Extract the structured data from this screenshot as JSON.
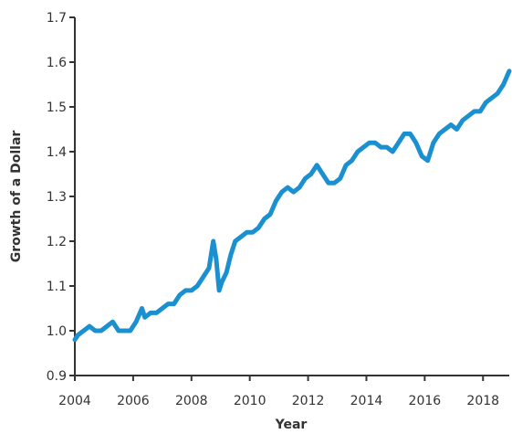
{
  "chart_data": {
    "type": "line",
    "title": "",
    "xlabel": "Year",
    "ylabel": "Growth of a Dollar",
    "xlim": [
      2004,
      2018.9
    ],
    "ylim": [
      0.9,
      1.7
    ],
    "xticks": [
      "2004",
      "2006",
      "2008",
      "2010",
      "2012",
      "2014",
      "2016",
      "2018"
    ],
    "yticks": [
      "0.9",
      "1.0",
      "1.1",
      "1.2",
      "1.3",
      "1.4",
      "1.5",
      "1.6",
      "1.7"
    ],
    "grid": false,
    "legend": "none",
    "line_color": "#1a90d0",
    "series": [
      {
        "x": [
          2004.0,
          2004.1,
          2004.3,
          2004.5,
          2004.7,
          2004.9,
          2005.1,
          2005.3,
          2005.5,
          2005.7,
          2005.9,
          2006.1,
          2006.3,
          2006.4,
          2006.6,
          2006.8,
          2007.0,
          2007.2,
          2007.4,
          2007.6,
          2007.8,
          2008.0,
          2008.2,
          2008.4,
          2008.6,
          2008.75,
          2008.85,
          2008.95,
          2009.05,
          2009.2,
          2009.35,
          2009.5,
          2009.7,
          2009.9,
          2010.1,
          2010.3,
          2010.5,
          2010.7,
          2010.9,
          2011.1,
          2011.3,
          2011.5,
          2011.7,
          2011.9,
          2012.1,
          2012.3,
          2012.5,
          2012.7,
          2012.9,
          2013.1,
          2013.3,
          2013.5,
          2013.7,
          2013.9,
          2014.1,
          2014.3,
          2014.5,
          2014.7,
          2014.9,
          2015.1,
          2015.3,
          2015.5,
          2015.7,
          2015.9,
          2016.1,
          2016.3,
          2016.5,
          2016.7,
          2016.9,
          2017.1,
          2017.3,
          2017.5,
          2017.7,
          2017.9,
          2018.1,
          2018.3,
          2018.5,
          2018.7,
          2018.9
        ],
        "y": [
          0.98,
          0.99,
          1.0,
          1.01,
          1.0,
          1.0,
          1.01,
          1.02,
          1.0,
          1.0,
          1.0,
          1.02,
          1.05,
          1.03,
          1.04,
          1.04,
          1.05,
          1.06,
          1.06,
          1.08,
          1.09,
          1.09,
          1.1,
          1.12,
          1.14,
          1.2,
          1.16,
          1.09,
          1.11,
          1.13,
          1.17,
          1.2,
          1.21,
          1.22,
          1.22,
          1.23,
          1.25,
          1.26,
          1.29,
          1.31,
          1.32,
          1.31,
          1.32,
          1.34,
          1.35,
          1.37,
          1.35,
          1.33,
          1.33,
          1.34,
          1.37,
          1.38,
          1.4,
          1.41,
          1.42,
          1.42,
          1.41,
          1.41,
          1.4,
          1.42,
          1.44,
          1.44,
          1.42,
          1.39,
          1.38,
          1.42,
          1.44,
          1.45,
          1.46,
          1.45,
          1.47,
          1.48,
          1.49,
          1.49,
          1.51,
          1.52,
          1.53,
          1.55,
          1.58
        ]
      }
    ]
  }
}
